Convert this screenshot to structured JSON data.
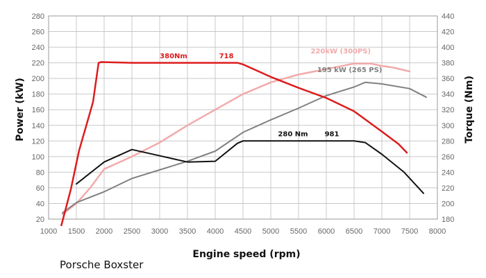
{
  "chart_data": {
    "type": "line",
    "title": "",
    "caption": "Porsche Boxster",
    "xlabel": "Engine speed (rpm)",
    "ylabel_left": "Power (kW)",
    "ylabel_right": "Torque (Nm)",
    "xlim": [
      1000,
      8000
    ],
    "ylim_left": [
      20,
      280
    ],
    "ylim_right": [
      180,
      440
    ],
    "x_ticks": [
      1000,
      1500,
      2000,
      2500,
      3000,
      3500,
      4000,
      4500,
      5000,
      5500,
      6000,
      6500,
      7000,
      7500,
      8000
    ],
    "y_ticks_left": [
      20,
      40,
      60,
      80,
      100,
      120,
      140,
      160,
      180,
      200,
      220,
      240,
      260,
      280
    ],
    "y_ticks_right": [
      180,
      200,
      220,
      240,
      260,
      280,
      300,
      320,
      340,
      360,
      380,
      400,
      420,
      440
    ],
    "grid": true,
    "series": [
      {
        "id": "torque-718",
        "axis": "right",
        "color": "#dd1c1c",
        "width": 2.5,
        "points": [
          [
            1230,
            172
          ],
          [
            1400,
            218
          ],
          [
            1550,
            268
          ],
          [
            1700,
            305
          ],
          [
            1800,
            330
          ],
          [
            1900,
            380
          ],
          [
            1950,
            381
          ],
          [
            2500,
            380
          ],
          [
            3000,
            380
          ],
          [
            3500,
            380
          ],
          [
            4000,
            380
          ],
          [
            4400,
            380
          ],
          [
            4500,
            378
          ],
          [
            5000,
            362
          ],
          [
            5500,
            348
          ],
          [
            6000,
            335
          ],
          [
            6500,
            318
          ],
          [
            7000,
            292
          ],
          [
            7300,
            276
          ],
          [
            7450,
            265
          ]
        ]
      },
      {
        "id": "power-718",
        "axis": "left",
        "color": "#f2aaaa",
        "width": 2.5,
        "points": [
          [
            1250,
            26
          ],
          [
            1500,
            40
          ],
          [
            1750,
            60
          ],
          [
            2000,
            84
          ],
          [
            2500,
            100
          ],
          [
            3000,
            118
          ],
          [
            3500,
            140
          ],
          [
            4000,
            160
          ],
          [
            4500,
            180
          ],
          [
            5000,
            195
          ],
          [
            5500,
            205
          ],
          [
            6000,
            212
          ],
          [
            6500,
            219
          ],
          [
            6800,
            219
          ],
          [
            7000,
            216
          ],
          [
            7200,
            214
          ],
          [
            7500,
            209
          ]
        ]
      },
      {
        "id": "torque-981",
        "axis": "right",
        "color": "#111111",
        "width": 2,
        "points": [
          [
            1500,
            225
          ],
          [
            2000,
            253
          ],
          [
            2500,
            269
          ],
          [
            3000,
            261
          ],
          [
            3500,
            253
          ],
          [
            4000,
            254
          ],
          [
            4400,
            277
          ],
          [
            4500,
            280
          ],
          [
            5000,
            280
          ],
          [
            5500,
            280
          ],
          [
            6000,
            280
          ],
          [
            6500,
            280
          ],
          [
            6700,
            278
          ],
          [
            7000,
            263
          ],
          [
            7400,
            240
          ],
          [
            7750,
            213
          ]
        ]
      },
      {
        "id": "power-981",
        "axis": "left",
        "color": "#808080",
        "width": 2,
        "points": [
          [
            1250,
            28
          ],
          [
            1500,
            41
          ],
          [
            2000,
            55
          ],
          [
            2500,
            72
          ],
          [
            3000,
            83
          ],
          [
            3500,
            94
          ],
          [
            4000,
            107
          ],
          [
            4500,
            131
          ],
          [
            5000,
            147
          ],
          [
            5500,
            162
          ],
          [
            6000,
            178
          ],
          [
            6500,
            189
          ],
          [
            6700,
            195
          ],
          [
            7000,
            193
          ],
          [
            7500,
            187
          ],
          [
            7800,
            176
          ]
        ]
      }
    ],
    "annotations": [
      {
        "text": "380Nm",
        "x": 3250,
        "y_axis": "left",
        "y": 226,
        "color": "#dd1c1c"
      },
      {
        "text": "718",
        "x": 4200,
        "y_axis": "left",
        "y": 226,
        "color": "#dd1c1c"
      },
      {
        "text": "220kW (300PS)",
        "x": 6260,
        "y_axis": "left",
        "y": 232,
        "color": "#f2aaaa"
      },
      {
        "text": "195 kW (265 PS)",
        "x": 6420,
        "y_axis": "left",
        "y": 208,
        "color": "#808080"
      },
      {
        "text": "280 Nm",
        "x": 5400,
        "y_axis": "left",
        "y": 126,
        "color": "#111111"
      },
      {
        "text": "981",
        "x": 6100,
        "y_axis": "left",
        "y": 126,
        "color": "#111111"
      }
    ]
  }
}
